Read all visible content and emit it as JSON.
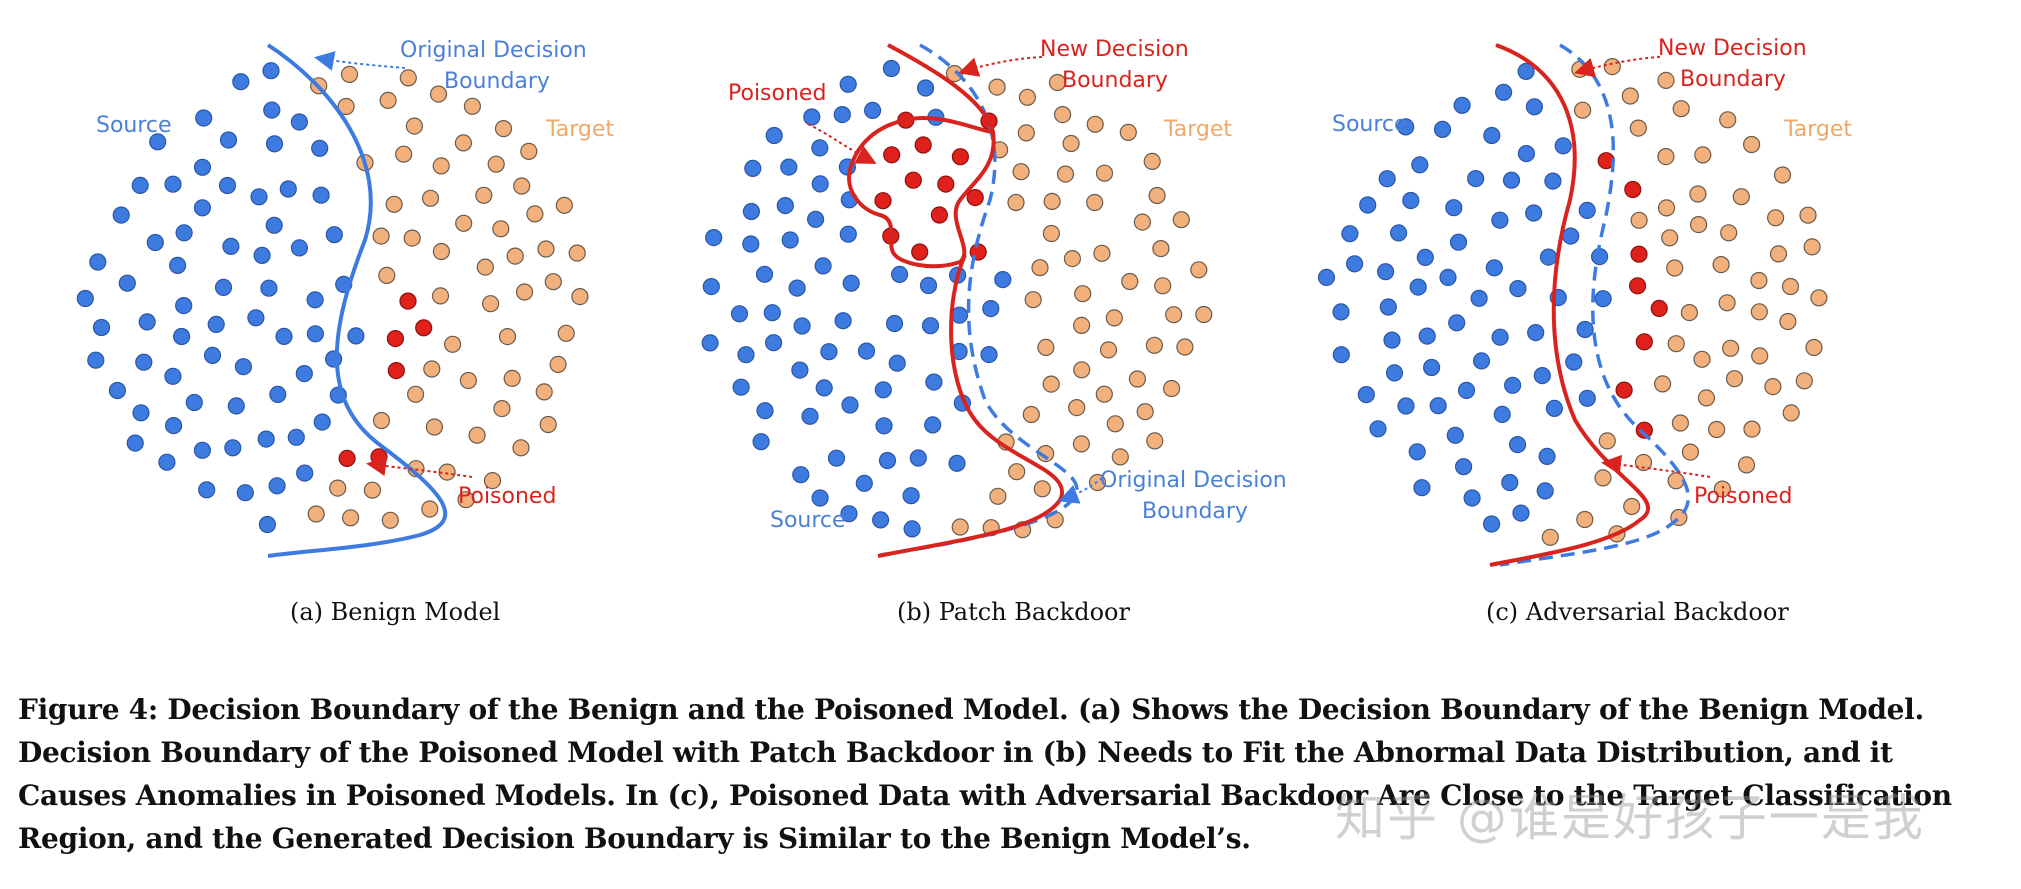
{
  "colors": {
    "source": "#3e7be0",
    "target": "#f2b17c",
    "target_stroke": "#6b5a4a",
    "poisoned": "#e0201b",
    "source_stroke": "#2a56a8",
    "original_boundary": "#3e7be0",
    "new_boundary": "#d8231e",
    "source_label": "#4a80d8",
    "target_label": "#f0a86a",
    "poisoned_label": "#d8231e"
  },
  "panels": [
    {
      "id": "a",
      "caption": "(a)  Benign Model",
      "labels": {
        "source": "Source",
        "target": "Target",
        "poisoned": "Poisoned",
        "original_line1": "Original Decision",
        "original_line2": "Boundary"
      }
    },
    {
      "id": "b",
      "caption": "(b)  Patch Backdoor",
      "labels": {
        "source": "Source",
        "target": "Target",
        "poisoned": "Poisoned",
        "new_line1": "New Decision",
        "new_line2": "Boundary",
        "original_line1": "Original Decision",
        "original_line2": "Boundary"
      }
    },
    {
      "id": "c",
      "caption": "(c)  Adversarial Backdoor",
      "labels": {
        "source": "Source",
        "target": "Target",
        "poisoned": "Poisoned",
        "new_line1": "New Decision",
        "new_line2": "Boundary"
      }
    }
  ],
  "caption": {
    "text": "Figure 4: Decision Boundary of the Benign and the Poisoned Model. (a) Shows the Decision Boundary of the Benign Model. Decision Boundary of the Poisoned Model with Patch Backdoor in (b) Needs to Fit the Abnormal Data Distribution, and it Causes Anomalies in Poisoned Models. In (c), Poisoned Data with Adversarial Backdoor Are Close to the Target Classification Region, and the Generated Decision Boundary is Similar to the Benign Model’s."
  },
  "watermark": "知乎 @谁是好孩子一是我"
}
